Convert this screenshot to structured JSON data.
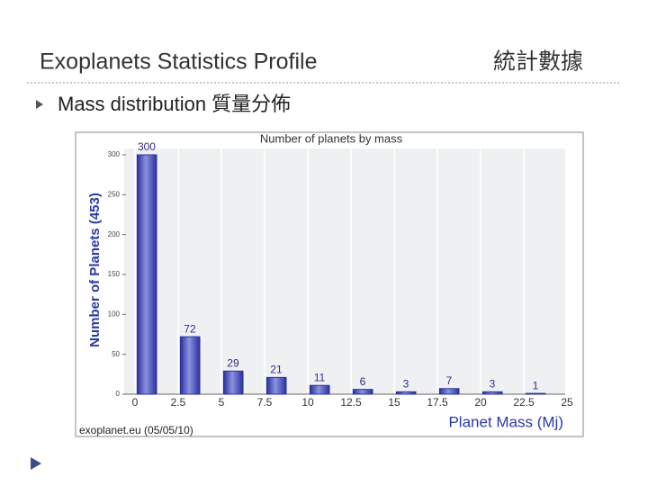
{
  "header": {
    "title": "Exoplanets Statistics Profile",
    "title_zh": "統計數據"
  },
  "bullet": "Mass distribution 質量分佈",
  "chart_data": {
    "type": "histogram",
    "title": "Number of planets by mass",
    "y_label": "Number of Planets (453)",
    "x_label": "Planet Mass (Mj)",
    "source": "exoplanet.eu (05/05/10)",
    "bins": [
      0,
      2.5,
      5,
      7.5,
      10,
      12.5,
      15,
      17.5,
      20,
      22.5,
      25
    ],
    "values": [
      300,
      72,
      29,
      21,
      11,
      6,
      3,
      7,
      3,
      1
    ],
    "color": "#2b319c",
    "xlim": [
      0,
      25
    ],
    "xticks": [
      0,
      2.5,
      5,
      7.5,
      10,
      12.5,
      15,
      17.5,
      20,
      22.5,
      25
    ],
    "ylim": [
      0,
      300
    ],
    "yticks": [
      0,
      50,
      100,
      150,
      200,
      250,
      300
    ],
    "grid": true
  }
}
